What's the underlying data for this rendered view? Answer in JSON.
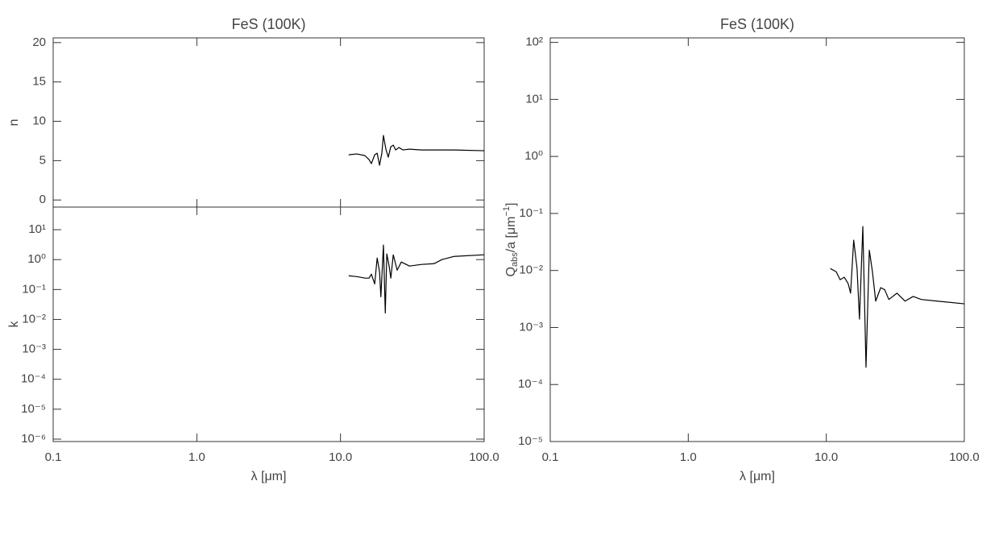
{
  "chart_data": [
    {
      "type": "line",
      "ylabel": "n",
      "log_x": true,
      "log_y": false,
      "color": "#000000",
      "xlim": [
        0.1,
        100
      ],
      "xticks": [
        0.1,
        {
          "value": 1,
          "label": "1.0"
        },
        {
          "value": 10,
          "label": "10.0"
        },
        {
          "value": 100,
          "label": "100.0"
        }
      ],
      "xtick_labels": false,
      "ylim": [
        -0.9,
        20.6
      ],
      "yticks": [
        0,
        5,
        10,
        15,
        20
      ],
      "title": "FeS (100K)",
      "x": [
        11.4,
        13.0,
        14.8,
        15.8,
        16.4,
        17.3,
        18.0,
        18.7,
        19.4,
        19.9,
        20.7,
        21.5,
        22.4,
        23.3,
        24.2,
        25.5,
        27.2,
        30.2,
        36.7,
        50.8,
        61.8,
        100
      ],
      "values": [
        5.74,
        5.85,
        5.64,
        5.13,
        4.62,
        5.74,
        5.95,
        4.41,
        5.95,
        8.2,
        6.46,
        5.44,
        6.77,
        6.97,
        6.36,
        6.67,
        6.36,
        6.46,
        6.36,
        6.36,
        6.36,
        6.26
      ]
    },
    {
      "type": "line",
      "ylabel": "k",
      "xlabel": "λ [μm]",
      "log_x": true,
      "log_y": true,
      "color": "#000000",
      "xlim": [
        0.1,
        100
      ],
      "xticks": [
        0.1,
        {
          "value": 1,
          "label": "1.0"
        },
        {
          "value": 10,
          "label": "10.0"
        },
        {
          "value": 100,
          "label": "100.0"
        }
      ],
      "xtick_labels": true,
      "ylim": [
        8.3e-07,
        57
      ],
      "yticks": [
        {
          "value": 10,
          "label": "10¹"
        },
        {
          "value": 1,
          "label": "10⁰"
        },
        {
          "value": 0.1,
          "label": "10⁻¹"
        },
        {
          "value": 0.01,
          "label": "10⁻²"
        },
        {
          "value": 0.001,
          "label": "10⁻³"
        },
        {
          "value": 0.0001,
          "label": "10⁻⁴"
        },
        {
          "value": 1e-05,
          "label": "10⁻⁵"
        },
        {
          "value": 1e-06,
          "label": "10⁻⁶"
        }
      ],
      "x": [
        11.4,
        13.0,
        14.8,
        15.8,
        16.4,
        17.3,
        18.0,
        18.7,
        19.1,
        19.9,
        20.5,
        21.0,
        21.8,
        22.4,
        23.3,
        24.8,
        26.5,
        30.2,
        36.7,
        44.7,
        50.8,
        61.8,
        100
      ],
      "values": [
        0.288,
        0.27,
        0.24,
        0.24,
        0.326,
        0.154,
        1.13,
        0.39,
        0.057,
        3.07,
        0.0164,
        1.55,
        0.61,
        0.24,
        1.45,
        0.445,
        0.83,
        0.61,
        0.69,
        0.73,
        1.0,
        1.28,
        1.45
      ]
    },
    {
      "type": "line",
      "title": "FeS (100K)",
      "xlabel": "λ [μm]",
      "ylabel": [
        "Q",
        "abs",
        "/a [μm",
        "−1",
        "]"
      ],
      "log_x": true,
      "log_y": true,
      "color": "#000000",
      "xlim": [
        0.1,
        100
      ],
      "xticks": [
        0.1,
        {
          "value": 1,
          "label": "1.0"
        },
        {
          "value": 10,
          "label": "10.0"
        },
        {
          "value": 100,
          "label": "100.0"
        }
      ],
      "xtick_labels": true,
      "ylim": [
        1e-05,
        120
      ],
      "yticks": [
        {
          "value": 100,
          "label": "10²"
        },
        {
          "value": 10,
          "label": "10¹"
        },
        {
          "value": 1,
          "label": "10⁰"
        },
        {
          "value": 0.1,
          "label": "10⁻¹"
        },
        {
          "value": 0.01,
          "label": "10⁻²"
        },
        {
          "value": 0.001,
          "label": "10⁻³"
        },
        {
          "value": 0.0001,
          "label": "10⁻⁴"
        },
        {
          "value": 1e-05,
          "label": "10⁻⁵"
        }
      ],
      "x": [
        10.7,
        11.8,
        12.6,
        13.5,
        14.4,
        15.0,
        15.8,
        16.7,
        17.4,
        18.4,
        19.4,
        20.5,
        21.6,
        22.8,
        24.8,
        26.5,
        28.4,
        32.5,
        37.2,
        42.6,
        48.8,
        64,
        100
      ],
      "values": [
        0.0108,
        0.0095,
        0.0069,
        0.0076,
        0.0059,
        0.004,
        0.034,
        0.011,
        0.0014,
        0.059,
        0.0002,
        0.0226,
        0.0095,
        0.0029,
        0.005,
        0.0046,
        0.0031,
        0.004,
        0.0029,
        0.0035,
        0.0031,
        0.0029,
        0.0026
      ]
    }
  ]
}
